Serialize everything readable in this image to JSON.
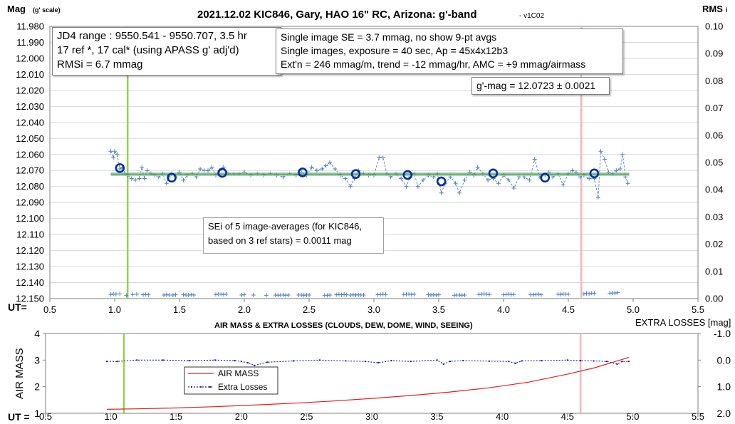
{
  "chart_data": [
    {
      "type": "scatter",
      "title": "2021.12.02 KIC846, Gary, HAO 16\" RC, Arizona: g'-band",
      "title_suffix": "- v1C02",
      "ylabel": "Mag",
      "ylabel_note": "(g' scale)",
      "y2label": "RMS",
      "y2label_suffix": "i",
      "xlabel": "UT=",
      "xlim": [
        0.5,
        5.5
      ],
      "ylim": [
        11.98,
        12.15
      ],
      "y_inverted": true,
      "y2lim": [
        0.0,
        0.1
      ],
      "x_ticks": [
        "0.5",
        "1.0",
        "1.5",
        "2.0",
        "2.5",
        "3.0",
        "3.5",
        "4.0",
        "4.5",
        "5.0",
        "5.5"
      ],
      "y_ticks": [
        "11.980",
        "11.990",
        "12.000",
        "12.010",
        "12.020",
        "12.030",
        "12.040",
        "12.050",
        "12.060",
        "12.070",
        "12.080",
        "12.090",
        "12.100",
        "12.110",
        "12.120",
        "12.130",
        "12.140",
        "12.150"
      ],
      "y2_ticks": [
        "0.10",
        "0.09",
        "0.08",
        "0.07",
        "0.06",
        "0.05",
        "0.04",
        "0.03",
        "0.02",
        "0.01",
        "0.00"
      ],
      "grid": "horizontal",
      "annotations": {
        "info_box": [
          "JD4 range : 9550.541 - 9550.707,  3.5  hr",
          "17 ref *, 17 cal* (using APASS g' adj'd)",
          "RMSi = 6.7 mmag"
        ],
        "settings_box": [
          "Single image SE = 3.7 mmag, no show  9-pt avgs",
          "Single images, exposure = 40 sec, Ap = 45x4x12b3",
          "Ext'n = 246 mmag/m, trend = -12 mmag/hr, AMC = +9 mmag/airmass"
        ],
        "mag_box": "g'-mag = 12.0723 ± 0.0021",
        "sei_box": [
          "SEi of 5 image-averages (for KIC846,",
          "based on 3 ref stars) = 0.0011 mag"
        ]
      },
      "vlines": [
        {
          "x": 1.1,
          "color": "#92d050"
        },
        {
          "x": 4.6,
          "color": "#f4b6b9"
        }
      ],
      "fit_line": {
        "x": [
          0.97,
          4.97
        ],
        "y": [
          12.0723,
          12.0723
        ],
        "color": "#4a9a78"
      },
      "series": [
        {
          "style": "single-images",
          "color": "#4f81bd",
          "x": [
            0.97,
            0.99,
            1.0,
            1.02,
            1.04,
            1.06,
            1.08,
            1.1,
            1.13,
            1.16,
            1.19,
            1.21,
            1.23,
            1.25,
            1.28,
            1.31,
            1.34,
            1.37,
            1.4,
            1.42,
            1.44,
            1.47,
            1.5,
            1.53,
            1.56,
            1.6,
            1.63,
            1.66,
            1.69,
            1.72,
            1.75,
            1.78,
            1.81,
            1.84,
            1.88,
            1.92,
            1.96,
            2.0,
            2.05,
            2.1,
            2.15,
            2.2,
            2.25,
            2.3,
            2.35,
            2.4,
            2.44,
            2.48,
            2.52,
            2.56,
            2.6,
            2.63,
            2.66,
            2.7,
            2.74,
            2.78,
            2.82,
            2.85,
            2.88,
            2.92,
            2.96,
            3.0,
            3.04,
            3.07,
            3.1,
            3.13,
            3.17,
            3.21,
            3.25,
            3.28,
            3.31,
            3.34,
            3.38,
            3.42,
            3.46,
            3.49,
            3.52,
            3.55,
            3.59,
            3.63,
            3.66,
            3.7,
            3.74,
            3.77,
            3.8,
            3.84,
            3.88,
            3.92,
            3.96,
            4.0,
            4.04,
            4.08,
            4.12,
            4.16,
            4.2,
            4.24,
            4.28,
            4.32,
            4.35,
            4.38,
            4.42,
            4.46,
            4.5,
            4.53,
            4.56,
            4.59,
            4.62,
            4.66,
            4.7,
            4.73,
            4.75,
            4.78,
            4.81,
            4.84,
            4.87,
            4.9,
            4.92,
            4.94,
            4.96
          ],
          "y": [
            12.058,
            12.062,
            12.058,
            12.06,
            12.069,
            12.068,
            12.072,
            12.073,
            12.075,
            12.076,
            12.075,
            12.068,
            12.075,
            12.07,
            12.072,
            12.073,
            12.074,
            12.072,
            12.078,
            12.074,
            12.072,
            12.074,
            12.071,
            12.076,
            12.073,
            12.072,
            12.074,
            12.069,
            12.07,
            12.07,
            12.068,
            12.073,
            12.07,
            12.068,
            12.072,
            12.072,
            12.072,
            12.071,
            12.073,
            12.072,
            12.073,
            12.072,
            12.073,
            12.074,
            12.072,
            12.073,
            12.071,
            12.073,
            12.068,
            12.07,
            12.069,
            12.067,
            12.065,
            12.069,
            12.073,
            12.075,
            12.08,
            12.075,
            12.07,
            12.072,
            12.073,
            12.073,
            12.062,
            12.062,
            12.072,
            12.074,
            12.072,
            12.075,
            12.08,
            12.074,
            12.072,
            12.08,
            12.076,
            12.073,
            12.074,
            12.072,
            12.084,
            12.078,
            12.074,
            12.078,
            12.084,
            12.076,
            12.071,
            12.073,
            12.068,
            12.072,
            12.076,
            12.075,
            12.078,
            12.073,
            12.076,
            12.081,
            12.074,
            12.074,
            12.076,
            12.063,
            12.074,
            12.073,
            12.071,
            12.074,
            12.072,
            12.079,
            12.072,
            12.07,
            12.071,
            12.074,
            12.073,
            12.075,
            12.075,
            12.087,
            12.058,
            12.063,
            12.071,
            12.072,
            12.07,
            12.069,
            12.06,
            12.074,
            12.078
          ]
        },
        {
          "style": "5-image averages",
          "color": "#002fa0",
          "x": [
            1.04,
            1.44,
            1.83,
            2.45,
            2.86,
            3.26,
            3.52,
            3.92,
            4.32,
            4.7
          ],
          "y": [
            12.0685,
            12.0745,
            12.0715,
            12.0712,
            12.0722,
            12.0728,
            12.0768,
            12.0718,
            12.0745,
            12.0718
          ]
        },
        {
          "style": "RMSi (right axis)",
          "color": "#4f81bd",
          "x": [
            0.97,
            0.99,
            1.01,
            1.04,
            1.09,
            1.14,
            1.17,
            1.22,
            1.24,
            1.26,
            1.38,
            1.4,
            1.42,
            1.45,
            1.47,
            1.53,
            1.55,
            1.57,
            1.59,
            1.61,
            1.78,
            1.8,
            1.82,
            1.84,
            1.86,
            1.98,
            2.0,
            2.07,
            2.17,
            2.24,
            2.26,
            2.28,
            2.3,
            2.32,
            2.34,
            2.42,
            2.44,
            2.46,
            2.48,
            2.5,
            2.62,
            2.64,
            2.66,
            2.71,
            2.73,
            2.75,
            2.77,
            2.79,
            2.82,
            2.84,
            2.86,
            2.88,
            2.9,
            2.92,
            3.03,
            3.05,
            3.07,
            3.09,
            3.23,
            3.25,
            3.27,
            3.29,
            3.31,
            3.42,
            3.44,
            3.46,
            3.48,
            3.5,
            3.62,
            3.64,
            3.66,
            3.68,
            3.7,
            3.81,
            3.83,
            3.85,
            3.87,
            3.89,
            4.0,
            4.02,
            4.04,
            4.06,
            4.08,
            4.21,
            4.23,
            4.25,
            4.27,
            4.29,
            4.42,
            4.44,
            4.46,
            4.48,
            4.5,
            4.62,
            4.64,
            4.66,
            4.68,
            4.7,
            4.82,
            4.84,
            4.86,
            4.88
          ],
          "y": [
            0.0015,
            0.0017,
            0.0016,
            0.0017,
            0.0012,
            0.0015,
            0.0016,
            0.0014,
            0.0015,
            0.0014,
            0.0013,
            0.0014,
            0.0013,
            0.0013,
            0.0014,
            0.0014,
            0.0013,
            0.0013,
            0.0014,
            0.0013,
            0.0015,
            0.0016,
            0.0016,
            0.0015,
            0.0016,
            0.0013,
            0.0014,
            0.0013,
            0.0012,
            0.0013,
            0.0012,
            0.0013,
            0.0013,
            0.0012,
            0.0013,
            0.0013,
            0.0013,
            0.0012,
            0.0013,
            0.0013,
            0.0012,
            0.0012,
            0.0013,
            0.0014,
            0.0015,
            0.0014,
            0.0015,
            0.0014,
            0.0013,
            0.0014,
            0.0013,
            0.0014,
            0.0013,
            0.0013,
            0.0014,
            0.0015,
            0.0016,
            0.0015,
            0.0015,
            0.0016,
            0.0016,
            0.0015,
            0.0016,
            0.0014,
            0.0013,
            0.0014,
            0.0013,
            0.0014,
            0.0012,
            0.0013,
            0.0013,
            0.0012,
            0.0013,
            0.0015,
            0.0016,
            0.0017,
            0.0016,
            0.0015,
            0.0014,
            0.0015,
            0.0016,
            0.0015,
            0.0015,
            0.0014,
            0.0014,
            0.0015,
            0.0016,
            0.0014,
            0.0016,
            0.0015,
            0.0017,
            0.0016,
            0.0016,
            0.0017,
            0.0019,
            0.0018,
            0.002,
            0.0019,
            0.002,
            0.0021,
            0.002,
            0.0022
          ]
        }
      ]
    },
    {
      "type": "line",
      "title": "AIR MASS & EXTRA LOSSES (CLOUDS, DEW, DOME, WIND, SEEING)",
      "ylabel": "AIR MASS",
      "y2label": "EXTRA LOSSES [mag]",
      "xlabel": "UT =",
      "xlim": [
        0.5,
        5.5
      ],
      "ylim": [
        1,
        4
      ],
      "y2lim": [
        2.0,
        -1.0
      ],
      "x_ticks": [
        "0.5",
        "1.0",
        "1.5",
        "2.0",
        "2.5",
        "3.0",
        "3.5",
        "4.0",
        "4.5",
        "5.0",
        "5.5"
      ],
      "y_ticks": [
        "4",
        "3",
        "2",
        "1"
      ],
      "y2_ticks": [
        "-1.0",
        "0.0",
        "1.0",
        "2.0"
      ],
      "legend": {
        "position": "center-left",
        "entries": [
          "AIR MASS",
          "Extra Losses"
        ]
      },
      "vlines": [
        {
          "x": 1.1,
          "color": "#92d050"
        },
        {
          "x": 4.6,
          "color": "#f4b6b9"
        }
      ],
      "series": [
        {
          "name": "AIR MASS",
          "color": "#e02020",
          "x": [
            0.97,
            1.2,
            1.5,
            1.8,
            2.1,
            2.4,
            2.7,
            3.0,
            3.3,
            3.6,
            3.9,
            4.2,
            4.5,
            4.7,
            4.85,
            4.97
          ],
          "y": [
            1.15,
            1.17,
            1.2,
            1.25,
            1.31,
            1.38,
            1.46,
            1.56,
            1.67,
            1.8,
            1.96,
            2.17,
            2.47,
            2.7,
            2.92,
            3.1
          ]
        },
        {
          "name": "Extra Losses",
          "color": "#1a1aa0",
          "x": [
            0.97,
            1.05,
            1.2,
            1.4,
            1.6,
            1.8,
            1.95,
            2.0,
            2.05,
            2.1,
            2.2,
            2.4,
            2.6,
            2.8,
            2.95,
            3.05,
            3.15,
            3.3,
            3.5,
            3.55,
            3.6,
            3.7,
            3.9,
            4.05,
            4.1,
            4.15,
            4.3,
            4.5,
            4.6,
            4.7,
            4.8,
            4.88,
            4.92,
            4.97
          ],
          "y": [
            0.05,
            0.05,
            0.0,
            0.0,
            0.02,
            0.0,
            0.02,
            0.05,
            0.1,
            0.2,
            0.08,
            0.03,
            0.0,
            0.03,
            0.05,
            0.1,
            0.02,
            0.05,
            0.0,
            0.15,
            0.05,
            0.02,
            0.04,
            0.05,
            0.12,
            0.03,
            0.02,
            0.0,
            0.02,
            0.03,
            0.05,
            0.15,
            0.05,
            0.05
          ]
        }
      ]
    }
  ]
}
